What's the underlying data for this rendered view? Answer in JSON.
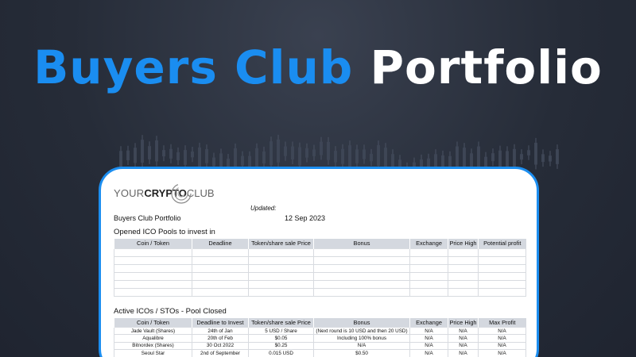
{
  "hero": {
    "title_part1": "Buyers Club",
    "title_part2": "Portfolio"
  },
  "logo": {
    "part1": "YOUR",
    "part2": "CRYPTO",
    "part3": "CLUB"
  },
  "meta": {
    "updated_label": "Updated:",
    "portfolio_title": "Buyers Club Portfolio",
    "updated_date": "12 Sep 2023"
  },
  "opened": {
    "title": "Opened ICO Pools to invest in",
    "headers": [
      "Coin / Token",
      "Deadline",
      "Token/share sale Price",
      "Bonus",
      "Exchange",
      "Price High",
      "Potential profit"
    ],
    "empty_rows": 6
  },
  "active": {
    "title": "Active ICOs / STOs - Pool Closed",
    "headers": [
      "Coin / Token",
      "Deadline to Invest",
      "Token/share sale Price",
      "Bonus",
      "Exchange",
      "Price High",
      "Max Profit"
    ],
    "rows": [
      [
        "Jade Vault (Shares)",
        "24th of Jan",
        "5 USD / Share",
        "(Next round is 10 USD and then 20 USD)",
        "N/A",
        "N/A",
        "N/A"
      ],
      [
        "Aqualibre",
        "20th of Feb",
        "$0.05",
        "Including 100% bonus",
        "N/A",
        "N/A",
        "N/A"
      ],
      [
        "Bitnordex (Shares)",
        "30 Oct 2022",
        "$0.25",
        "N/A",
        "N/A",
        "N/A",
        "N/A"
      ],
      [
        "Seoul Star",
        "2nd of September",
        "0.015 USD",
        "$0.50",
        "N/A",
        "N/A",
        "N/A"
      ]
    ]
  },
  "colors": {
    "accent_blue": "#1a8df0",
    "background": "#262c38",
    "card_border": "#1c8ef0",
    "header_bg": "#d4d8df"
  }
}
